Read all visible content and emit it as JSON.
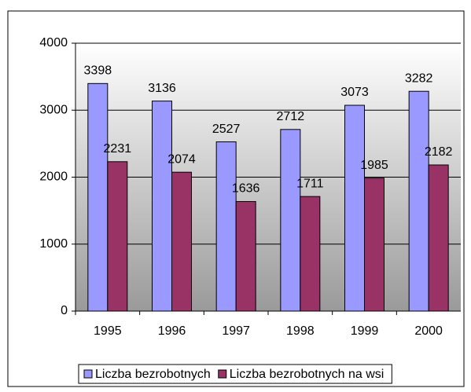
{
  "chart_data": {
    "type": "bar",
    "categories": [
      "1995",
      "1996",
      "1997",
      "1998",
      "1999",
      "2000"
    ],
    "series": [
      {
        "name": "Liczba bezrobotnych",
        "color": "#9999ff",
        "values": [
          3398,
          3136,
          2527,
          2712,
          3073,
          3282
        ]
      },
      {
        "name": "Liczba bezrobotnych na wsi",
        "color": "#993366",
        "values": [
          2231,
          2074,
          1636,
          1711,
          1985,
          2182
        ]
      }
    ],
    "ylim": [
      0,
      4000
    ],
    "yticks": [
      0,
      1000,
      2000,
      3000,
      4000
    ],
    "grid": true,
    "legend": "bottom"
  }
}
